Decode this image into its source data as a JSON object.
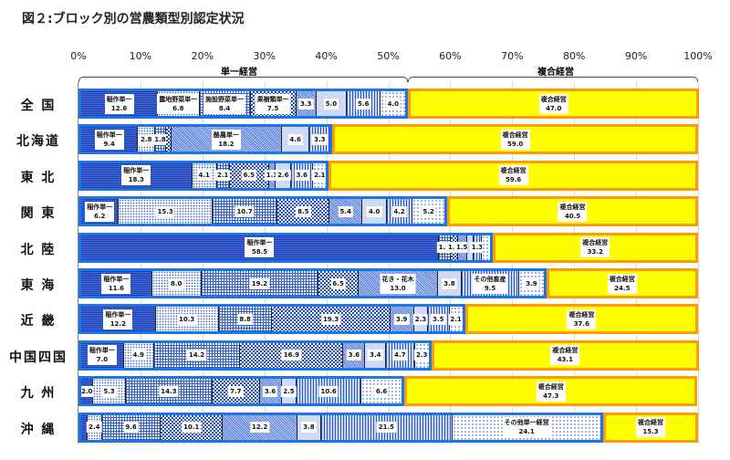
{
  "chart_data": {
    "type": "bar",
    "orientation": "horizontal-stacked-100%",
    "title": "図２:ブロック別の営農類型別認定状況",
    "xlim": [
      0,
      100
    ],
    "x_ticks": [
      "0%",
      "10%",
      "20%",
      "30%",
      "40%",
      "50%",
      "60%",
      "70%",
      "80%",
      "90%",
      "100%"
    ],
    "groups": [
      "単一経営",
      "複合経営"
    ],
    "colors": {
      "single_border": "#1d74e4",
      "multi_fill": "#ffff00",
      "multi_border": "#ff9a00"
    },
    "rows": [
      {
        "name": "全 国",
        "segments": [
          {
            "label": "稲作単一",
            "value": 12.6
          },
          {
            "label": "露地野菜単一",
            "value": 6.8
          },
          {
            "label": "施設野菜単一",
            "value": 8.4
          },
          {
            "label": "果樹類単一",
            "value": 7.5
          },
          {
            "value": 3.3
          },
          {
            "value": 5.0
          },
          {
            "value": 5.6
          },
          {
            "value": 4.0
          }
        ],
        "multi": 47.0
      },
      {
        "name": "北海道",
        "segments": [
          {
            "label": "稲作単一",
            "value": 9.4
          },
          {
            "value": 2.8
          },
          {
            "value": 1.8
          },
          {
            "value": 0.9,
            "hidden": true
          },
          {
            "label": "酪農単一",
            "value": 18.2
          },
          {
            "value": 4.6
          },
          {
            "value": 3.3
          }
        ],
        "multi": 59.0
      },
      {
        "name": "東 北",
        "segments": [
          {
            "label": "稲作単一",
            "value": 18.3
          },
          {
            "value": 4.1
          },
          {
            "value": 2.1
          },
          {
            "value": 6.5
          },
          {
            "value": 1.1
          },
          {
            "value": 2.6
          },
          {
            "value": 3.6
          },
          {
            "value": 2.1
          }
        ],
        "multi": 59.6
      },
      {
        "name": "関 東",
        "segments": [
          {
            "label": "稲作単一",
            "value": 6.2
          },
          {
            "value": 15.3
          },
          {
            "value": 10.7
          },
          {
            "value": 8.5
          },
          {
            "value": 5.4
          },
          {
            "value": 4.0
          },
          {
            "value": 4.2
          },
          {
            "value": 5.2
          }
        ],
        "multi": 40.5
      },
      {
        "name": "北 陸",
        "segments": [
          {
            "label": "稲作単一",
            "value": 58.5
          },
          {
            "value": 1.9
          },
          {
            "value": 1.2
          },
          {
            "value": 1.5
          },
          {
            "value": 1.1,
            "hidden": true
          },
          {
            "value": 1.3
          },
          {
            "value": 1.3,
            "hidden": true
          }
        ],
        "multi": 33.2
      },
      {
        "name": "東 海",
        "segments": [
          {
            "label": "稲作単一",
            "value": 11.6
          },
          {
            "value": 8.0
          },
          {
            "value": 19.2
          },
          {
            "value": 6.5
          },
          {
            "label": "花き・花木",
            "value": 13.0
          },
          {
            "value": 3.8
          },
          {
            "label": "その他畜産",
            "value": 9.5
          },
          {
            "value": 3.9
          }
        ],
        "multi": 24.5
      },
      {
        "name": "近 畿",
        "segments": [
          {
            "label": "稲作単一",
            "value": 12.2
          },
          {
            "value": 10.3
          },
          {
            "value": 8.8
          },
          {
            "value": 19.3
          },
          {
            "value": 3.9
          },
          {
            "value": 2.3
          },
          {
            "value": 3.5
          },
          {
            "value": 2.1
          }
        ],
        "multi": 37.6
      },
      {
        "name": "中国四国",
        "segments": [
          {
            "label": "稲作単一",
            "value": 7.0
          },
          {
            "value": 4.9
          },
          {
            "value": 14.2
          },
          {
            "value": 16.9
          },
          {
            "value": 3.6
          },
          {
            "value": 3.4
          },
          {
            "value": 4.7
          },
          {
            "value": 2.3
          }
        ],
        "multi": 43.1
      },
      {
        "name": "九 州",
        "segments": [
          {
            "value": 2.0
          },
          {
            "value": 5.3
          },
          {
            "value": 14.3
          },
          {
            "value": 7.7
          },
          {
            "value": 3.6
          },
          {
            "value": 2.5
          },
          {
            "value": 10.6
          },
          {
            "value": 6.6
          }
        ],
        "multi": 47.3
      },
      {
        "name": "沖 縄",
        "segments": [
          {
            "value": 1.0,
            "hidden": true
          },
          {
            "value": 2.4
          },
          {
            "value": 9.6
          },
          {
            "value": 10.1
          },
          {
            "value": 12.2
          },
          {
            "value": 3.8
          },
          {
            "value": 21.5
          },
          {
            "label": "その他単一経営",
            "value": 24.1
          }
        ],
        "multi": 15.3
      }
    ],
    "multi_label": "複合経営"
  }
}
